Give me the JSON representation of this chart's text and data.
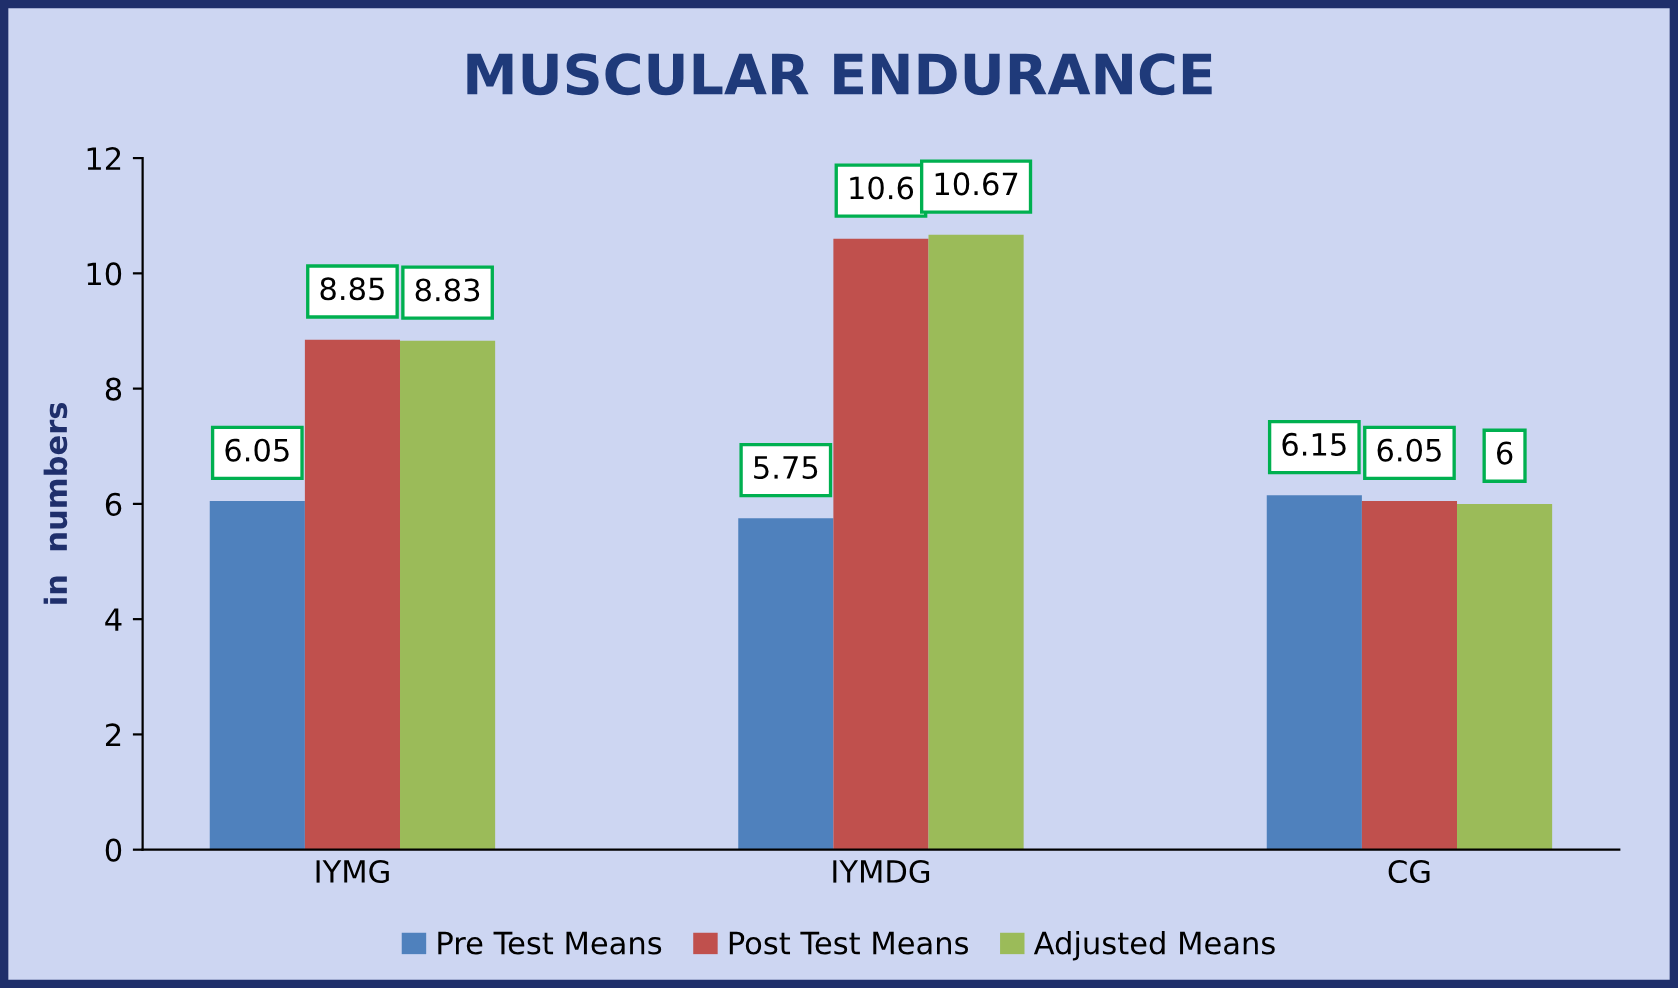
{
  "chart_data": {
    "type": "bar",
    "title": "MUSCULAR ENDURANCE",
    "ylabel": "in  numbers",
    "categories": [
      "IYMG",
      "IYMDG",
      "CG"
    ],
    "series": [
      {
        "name": "Pre Test Means",
        "color": "#4f81bd",
        "values": [
          6.05,
          5.75,
          6.15
        ]
      },
      {
        "name": "Post Test Means",
        "color": "#c0504d",
        "values": [
          8.85,
          10.6,
          6.05
        ]
      },
      {
        "name": "Adjusted Means",
        "color": "#9bbb59",
        "values": [
          8.83,
          10.67,
          6
        ]
      }
    ],
    "ylim": [
      0,
      12
    ],
    "yticks": [
      0,
      2,
      4,
      6,
      8,
      10,
      12
    ],
    "data_labels": true,
    "legend": "bottom",
    "grid": false
  }
}
